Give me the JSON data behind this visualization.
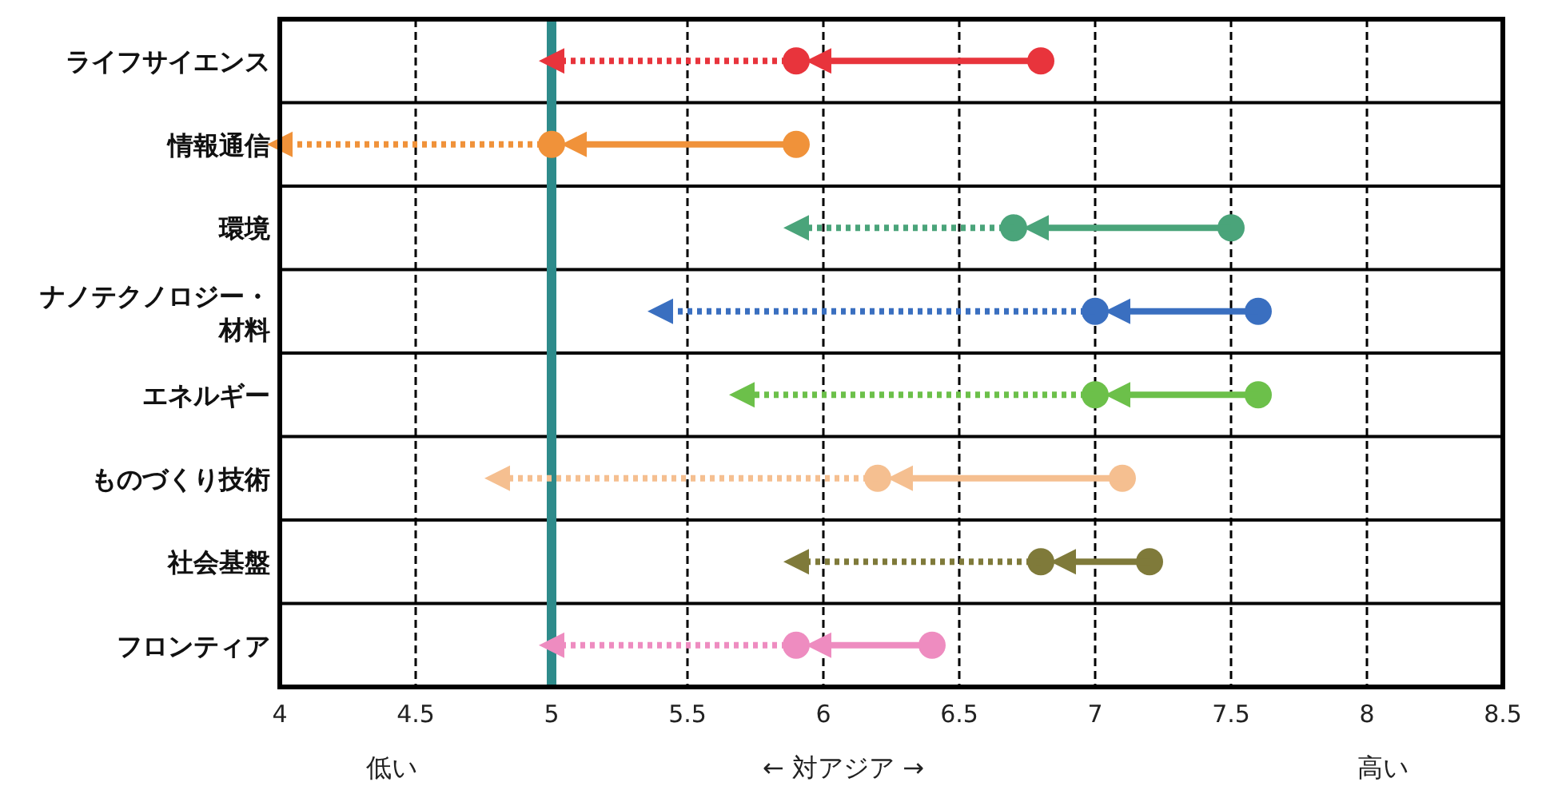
{
  "chart_data": {
    "type": "scatter",
    "orientation": "horizontal",
    "xlabel": "← 対アジア →",
    "categories": [
      "ライフサイエンス",
      "情報通信",
      "環境",
      "ナノテクノロジー・材料",
      "エネルギー",
      "ものづくり技術",
      "社会基盤",
      "フロンティア"
    ],
    "series": [
      {
        "type": "scatter",
        "marker": "circle",
        "values": [
          6.8,
          5.9,
          7.5,
          7.6,
          7.6,
          7.1,
          7.2,
          6.4
        ],
        "colors": [
          "#e8343c",
          "#f0923a",
          "#4aa47a",
          "#3a6fc0",
          "#6cc04a",
          "#f5bf90",
          "#7f7a3a",
          "#ee8cc0"
        ]
      },
      {
        "type": "scatter",
        "marker": "circle",
        "line_style": "solid",
        "values": [
          5.9,
          5.0,
          6.7,
          7.0,
          7.0,
          6.2,
          6.8,
          5.9
        ],
        "colors": [
          "#e8343c",
          "#f0923a",
          "#4aa47a",
          "#3a6fc0",
          "#6cc04a",
          "#f5bf90",
          "#7f7a3a",
          "#ee8cc0"
        ]
      },
      {
        "type": "scatter",
        "marker": "triangle",
        "line_style": "dotted",
        "values": [
          5.0,
          4.0,
          5.9,
          5.4,
          5.7,
          4.8,
          5.9,
          5.0
        ],
        "colors": [
          "#e8343c",
          "#f0923a",
          "#4aa47a",
          "#3a6fc0",
          "#6cc04a",
          "#f5bf90",
          "#7f7a3a",
          "#ee8cc0"
        ]
      }
    ],
    "xlim": [
      4,
      8.5
    ],
    "xticks": [
      4,
      4.5,
      5,
      5.5,
      6,
      6.5,
      7,
      7.5,
      8,
      8.5
    ],
    "grid": "x",
    "ref_lines": [
      {
        "axis": "x",
        "value": 5,
        "color": "#2e8b8b"
      }
    ],
    "annotations": [
      "低い",
      "高い"
    ]
  }
}
